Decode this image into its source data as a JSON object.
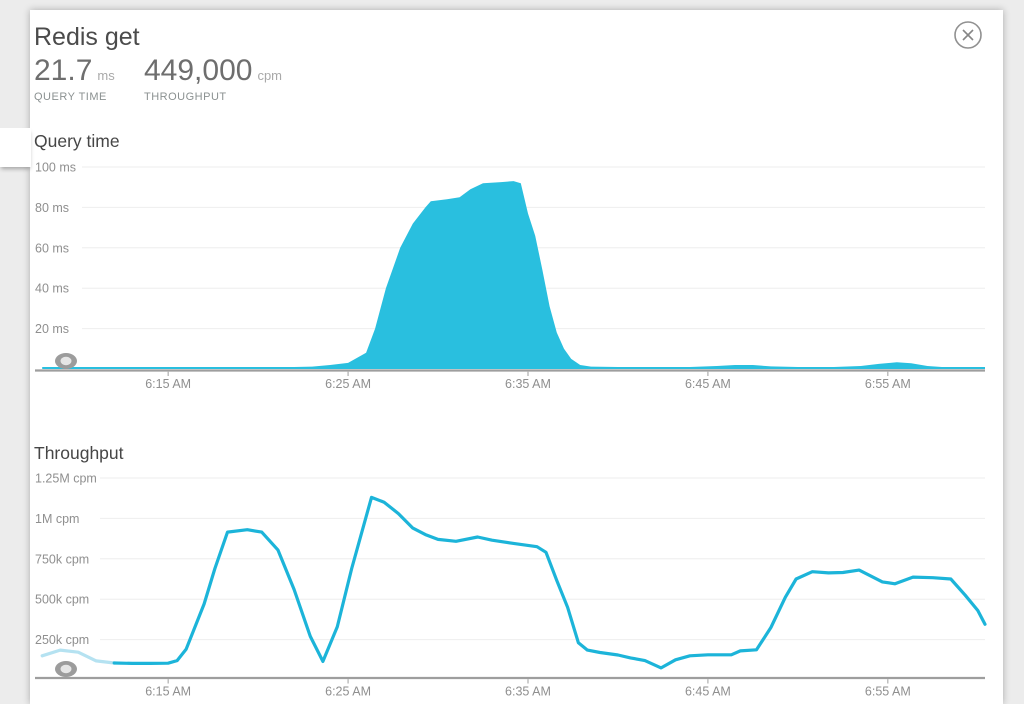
{
  "header": {
    "title": "Redis get",
    "metrics": [
      {
        "value": "21.7",
        "unit": "ms",
        "label": "QUERY TIME"
      },
      {
        "value": "449,000",
        "unit": "cpm",
        "label": "THROUGHPUT"
      }
    ],
    "close_icon": "circle-x-icon"
  },
  "colors": {
    "series_fill": "#29bfdf",
    "series_line": "#1cb4d9",
    "series_line_faded": "#b5e2f1",
    "axis": "#9e9e9e",
    "grid": "#eeeeee",
    "tick_label": "#8f8f8f",
    "background": "#ececec"
  },
  "chart_data": [
    {
      "type": "area",
      "title": "Query time",
      "value_units": "ms",
      "x_units": "minutes after 6:00 AM",
      "ylim": [
        0,
        100
      ],
      "grid": true,
      "legend": "none",
      "yticks": [
        {
          "label": "100 ms",
          "value": 100
        },
        {
          "label": "80 ms",
          "value": 80
        },
        {
          "label": "60 ms",
          "value": 60
        },
        {
          "label": "40 ms",
          "value": 40
        },
        {
          "label": "20 ms",
          "value": 20
        }
      ],
      "xticks": [
        {
          "label": "6:15 AM",
          "t": 15
        },
        {
          "label": "6:25 AM",
          "t": 25
        },
        {
          "label": "6:35 AM",
          "t": 35
        },
        {
          "label": "6:45 AM",
          "t": 45
        },
        {
          "label": "6:55 AM",
          "t": 55
        }
      ],
      "points_format": "[minutes_after_6am, ms]",
      "points": [
        [
          8,
          1
        ],
        [
          10,
          1
        ],
        [
          12,
          1
        ],
        [
          14,
          1
        ],
        [
          16,
          1
        ],
        [
          18,
          1
        ],
        [
          20,
          1
        ],
        [
          22,
          1
        ],
        [
          23,
          1.2
        ],
        [
          24,
          2
        ],
        [
          25,
          3
        ],
        [
          26,
          8
        ],
        [
          26.5,
          20
        ],
        [
          27.1,
          40
        ],
        [
          27.9,
          60
        ],
        [
          28.6,
          72
        ],
        [
          29.3,
          80
        ],
        [
          29.6,
          83
        ],
        [
          30.5,
          84
        ],
        [
          31.2,
          85
        ],
        [
          31.8,
          89
        ],
        [
          32.5,
          92
        ],
        [
          33.5,
          92.5
        ],
        [
          34.2,
          93
        ],
        [
          34.6,
          92
        ],
        [
          35,
          77
        ],
        [
          35.4,
          66
        ],
        [
          35.8,
          49
        ],
        [
          36.2,
          31
        ],
        [
          36.6,
          18
        ],
        [
          37,
          10
        ],
        [
          37.4,
          5
        ],
        [
          37.9,
          2
        ],
        [
          38.5,
          1.2
        ],
        [
          40,
          1
        ],
        [
          42,
          1
        ],
        [
          44,
          1
        ],
        [
          45.5,
          1.5
        ],
        [
          46.5,
          2
        ],
        [
          47.5,
          2
        ],
        [
          48.5,
          1.3
        ],
        [
          50,
          1
        ],
        [
          52,
          1
        ],
        [
          53.5,
          1.5
        ],
        [
          54.5,
          2.5
        ],
        [
          55.5,
          3.3
        ],
        [
          56.3,
          2.8
        ],
        [
          57.2,
          1.5
        ],
        [
          58,
          1
        ],
        [
          59,
          1
        ],
        [
          60.4,
          1
        ]
      ]
    },
    {
      "type": "line",
      "title": "Throughput",
      "value_units": "kcpm",
      "x_units": "minutes after 6:00 AM",
      "ylim": [
        0,
        1250000
      ],
      "grid": true,
      "legend": "none",
      "faded_until_index": 4,
      "yticks": [
        {
          "label": "1.25M cpm",
          "value": 1250
        },
        {
          "label": "1M cpm",
          "value": 1000
        },
        {
          "label": "750k cpm",
          "value": 750
        },
        {
          "label": "500k cpm",
          "value": 500
        },
        {
          "label": "250k cpm",
          "value": 250
        }
      ],
      "xticks": [
        {
          "label": "6:15 AM",
          "t": 15
        },
        {
          "label": "6:25 AM",
          "t": 25
        },
        {
          "label": "6:35 AM",
          "t": 35
        },
        {
          "label": "6:45 AM",
          "t": 45
        },
        {
          "label": "6:55 AM",
          "t": 55
        }
      ],
      "points_format": "[minutes_after_6am, kcpm]",
      "points": [
        [
          8,
          150
        ],
        [
          9,
          185
        ],
        [
          10,
          172
        ],
        [
          11,
          118
        ],
        [
          12,
          105
        ],
        [
          13,
          103
        ],
        [
          14,
          103
        ],
        [
          15,
          104
        ],
        [
          15.5,
          120
        ],
        [
          16,
          190
        ],
        [
          17,
          470
        ],
        [
          17.6,
          690
        ],
        [
          18.3,
          915
        ],
        [
          19.4,
          930
        ],
        [
          20.2,
          915
        ],
        [
          21.1,
          805
        ],
        [
          22,
          560
        ],
        [
          22.9,
          270
        ],
        [
          23.6,
          115
        ],
        [
          24.4,
          330
        ],
        [
          25.2,
          690
        ],
        [
          26.3,
          1130
        ],
        [
          27,
          1100
        ],
        [
          27.8,
          1030
        ],
        [
          28.6,
          940
        ],
        [
          29.3,
          900
        ],
        [
          30,
          870
        ],
        [
          31,
          858
        ],
        [
          32.2,
          885
        ],
        [
          33,
          865
        ],
        [
          34.2,
          845
        ],
        [
          35.5,
          825
        ],
        [
          36,
          790
        ],
        [
          36.6,
          615
        ],
        [
          37.2,
          450
        ],
        [
          37.8,
          230
        ],
        [
          38.3,
          185
        ],
        [
          39,
          170
        ],
        [
          40,
          155
        ],
        [
          40.7,
          137
        ],
        [
          41.5,
          120
        ],
        [
          42.4,
          75
        ],
        [
          43.2,
          125
        ],
        [
          44,
          150
        ],
        [
          45,
          156
        ],
        [
          46.3,
          156
        ],
        [
          46.8,
          180
        ],
        [
          47.7,
          187
        ],
        [
          48.5,
          325
        ],
        [
          49.3,
          512
        ],
        [
          49.9,
          625
        ],
        [
          50.8,
          670
        ],
        [
          51.7,
          663
        ],
        [
          52.5,
          665
        ],
        [
          53.4,
          680
        ],
        [
          54.7,
          607
        ],
        [
          55.4,
          595
        ],
        [
          56.4,
          637
        ],
        [
          57.5,
          633
        ],
        [
          58.5,
          625
        ],
        [
          59.3,
          525
        ],
        [
          60,
          430
        ],
        [
          60.4,
          345
        ]
      ]
    }
  ]
}
